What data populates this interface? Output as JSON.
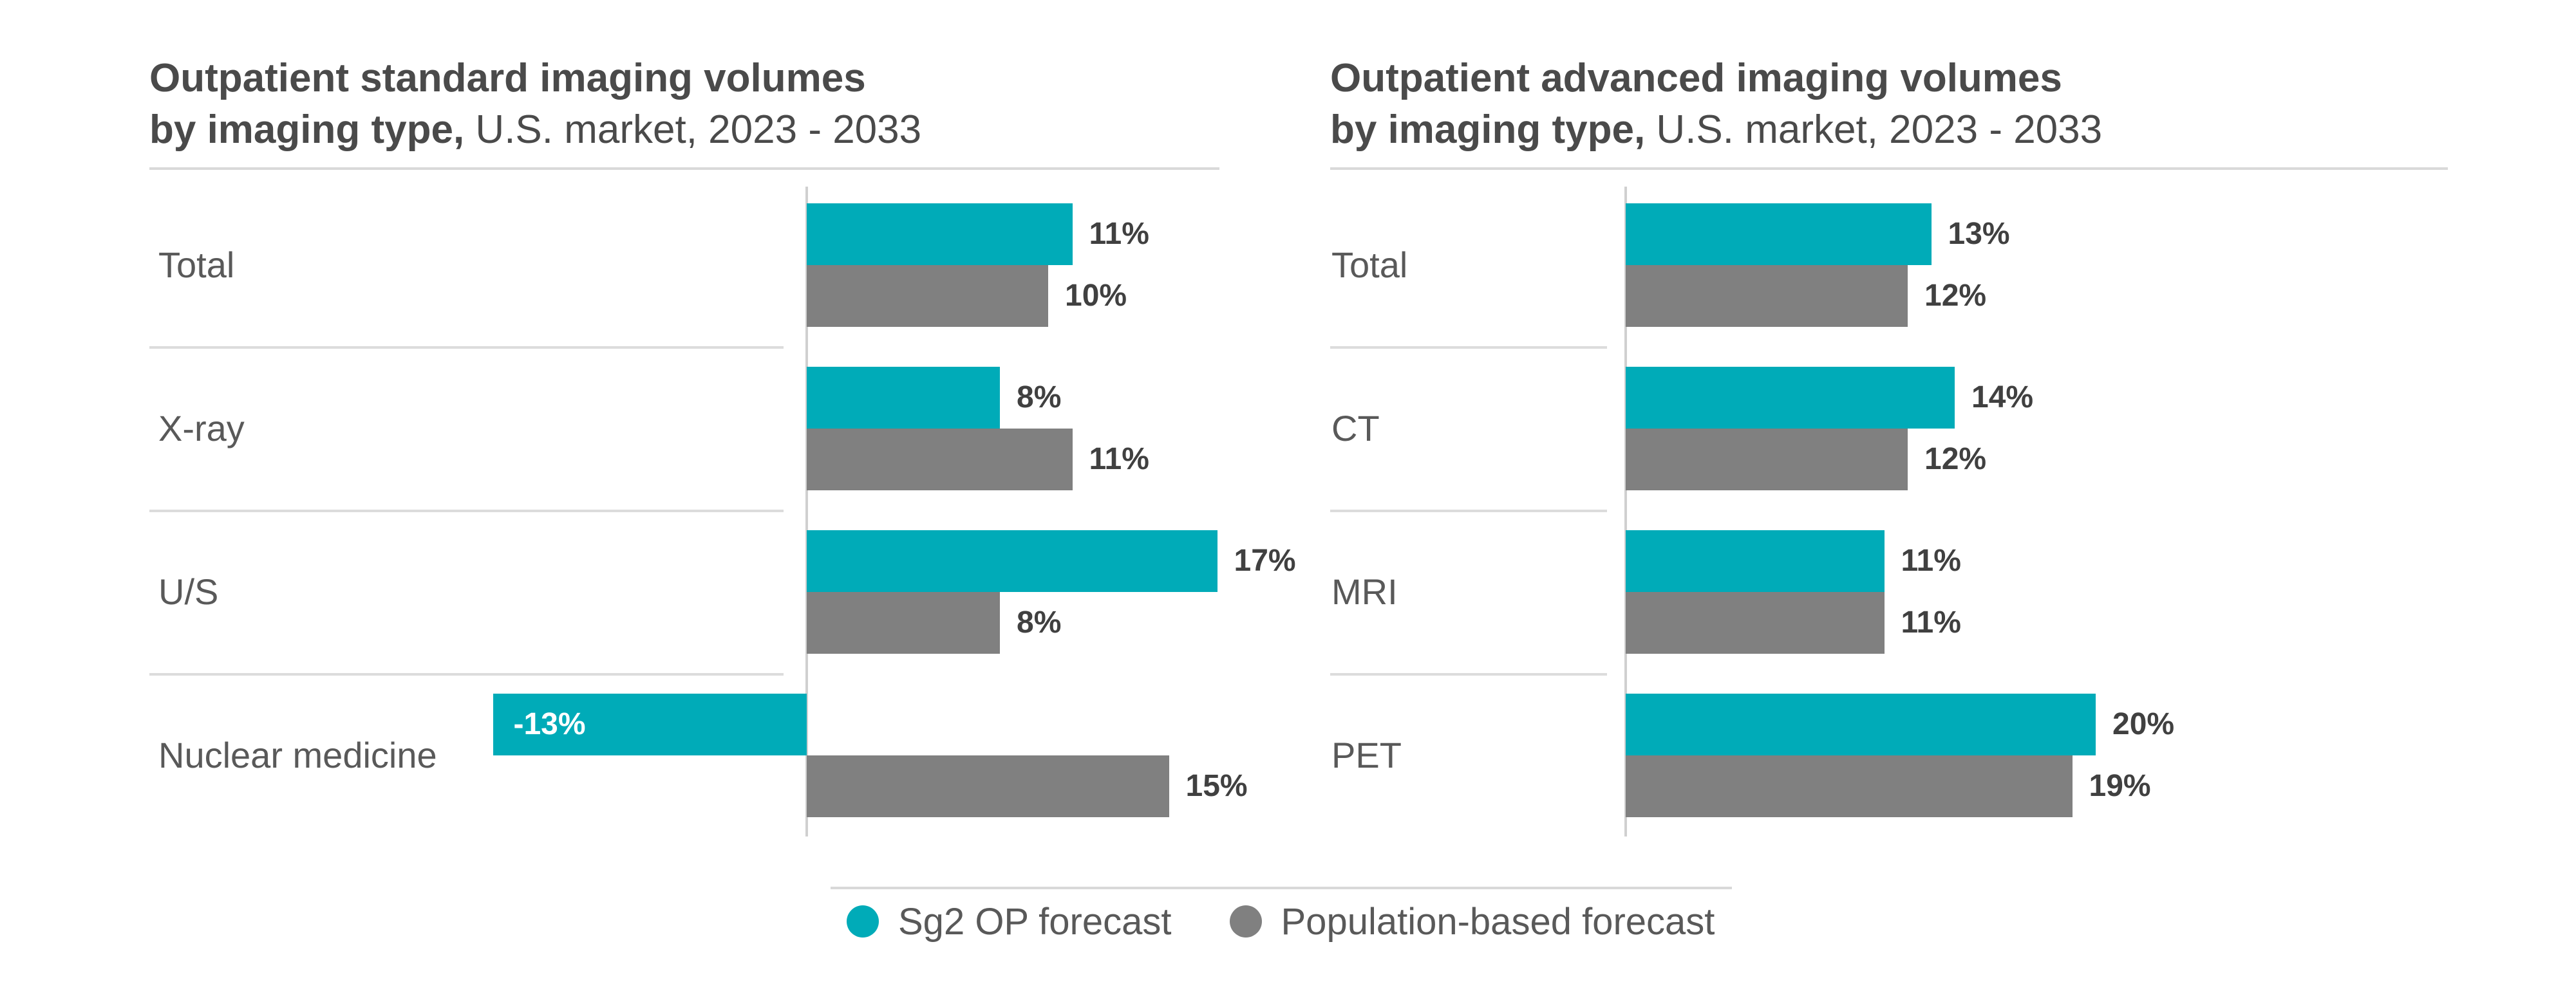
{
  "colors": {
    "forecast": "#00abb8",
    "population": "#808080"
  },
  "legend": [
    {
      "key": "forecast",
      "label": "Sg2 OP forecast"
    },
    {
      "key": "population",
      "label": "Population-based forecast"
    }
  ],
  "chart_data": [
    {
      "type": "bar",
      "orientation": "horizontal",
      "title_bold_1": "Outpatient standard imaging volumes",
      "title_bold_2": "by imaging type,",
      "title_rest": " U.S. market, 2023 - 2033",
      "categories": [
        "Total",
        "X-ray",
        "U/S",
        "Nuclear medicine"
      ],
      "series": [
        {
          "name": "Sg2 OP forecast",
          "values": [
            11,
            8,
            17,
            -13
          ],
          "labels": [
            "11%",
            "8%",
            "17%",
            "-13%"
          ]
        },
        {
          "name": "Population-based forecast",
          "values": [
            10,
            11,
            8,
            15
          ],
          "labels": [
            "10%",
            "11%",
            "8%",
            "15%"
          ]
        }
      ],
      "unit": "%",
      "legend_position": "bottom"
    },
    {
      "type": "bar",
      "orientation": "horizontal",
      "title_bold_1": "Outpatient advanced imaging volumes",
      "title_bold_2": "by imaging type,",
      "title_rest": " U.S. market, 2023 - 2033",
      "categories": [
        "Total",
        "CT",
        "MRI",
        "PET"
      ],
      "series": [
        {
          "name": "Sg2 OP forecast",
          "values": [
            13,
            14,
            11,
            20
          ],
          "labels": [
            "13%",
            "14%",
            "11%",
            "20%"
          ]
        },
        {
          "name": "Population-based forecast",
          "values": [
            12,
            12,
            11,
            19
          ],
          "labels": [
            "12%",
            "12%",
            "11%",
            "19%"
          ]
        }
      ],
      "unit": "%",
      "legend_position": "bottom"
    }
  ]
}
